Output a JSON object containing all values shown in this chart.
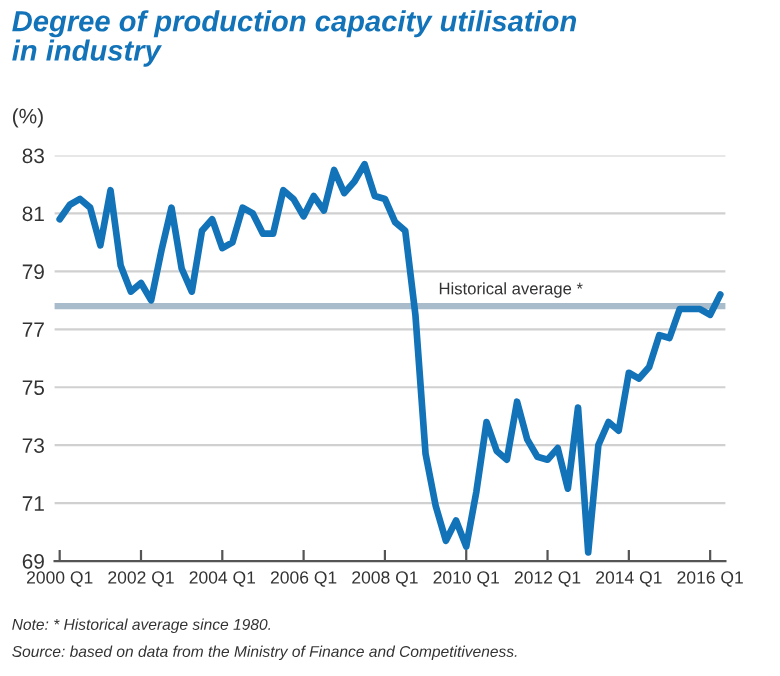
{
  "chart_data": {
    "type": "line",
    "title": "Degree of production capacity utilisation\nin industry",
    "subtitle": "(%)",
    "categories": [
      "2000 Q1",
      null,
      null,
      null,
      null,
      null,
      null,
      null,
      "2002 Q1",
      null,
      null,
      null,
      null,
      null,
      null,
      null,
      "2004 Q1",
      null,
      null,
      null,
      null,
      null,
      null,
      null,
      "2006 Q1",
      null,
      null,
      null,
      null,
      null,
      null,
      null,
      "2008 Q1",
      null,
      null,
      null,
      null,
      null,
      null,
      null,
      "2010 Q1",
      null,
      null,
      null,
      null,
      null,
      null,
      null,
      "2012 Q1",
      null,
      null,
      null,
      null,
      null,
      null,
      null,
      "2014 Q1",
      null,
      null,
      null,
      null,
      null,
      null,
      null,
      "2016 Q1",
      null
    ],
    "series": [
      {
        "color": "#1273b9",
        "values": [
          80.8,
          81.3,
          81.5,
          81.2,
          79.9,
          81.8,
          79.2,
          78.3,
          78.6,
          78.0,
          79.7,
          81.2,
          79.1,
          78.3,
          80.4,
          80.8,
          79.8,
          80.0,
          81.2,
          81.0,
          80.3,
          80.3,
          81.8,
          81.5,
          80.9,
          81.6,
          81.1,
          82.5,
          81.7,
          82.1,
          82.7,
          81.6,
          81.5,
          80.7,
          80.4,
          77.5,
          72.7,
          70.9,
          69.7,
          70.4,
          69.5,
          71.4,
          73.8,
          72.8,
          72.5,
          74.5,
          73.2,
          72.6,
          72.5,
          72.9,
          71.5,
          74.3,
          69.3,
          73.0,
          73.8,
          73.5,
          75.5,
          75.3,
          75.7,
          76.8,
          76.7,
          77.7,
          77.7,
          77.7,
          77.5,
          78.2
        ]
      }
    ],
    "ylim": [
      69,
      83
    ],
    "yticks": [
      69,
      71,
      73,
      75,
      77,
      79,
      81,
      83
    ],
    "grid": "y",
    "ref_lines": [
      {
        "axis": "y",
        "value": 77.8,
        "label": "Historical average *",
        "color": "#a9bccb"
      }
    ],
    "annotations": [
      "Note: * Historical average since 1980.",
      "Source: based on data from the Ministry of Finance and Competitiveness."
    ]
  }
}
